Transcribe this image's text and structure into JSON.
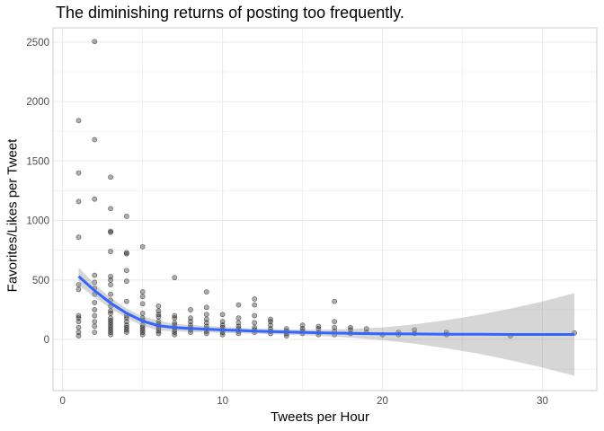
{
  "chart_data": {
    "type": "scatter",
    "title": "The diminishing returns of posting too frequently.",
    "xlabel": "Tweets per Hour",
    "ylabel": "Favorites/Likes per Tweet",
    "xlim": [
      -0.6,
      33.4
    ],
    "ylim": [
      -430,
      2620
    ],
    "x_ticks": [
      0,
      10,
      20,
      30
    ],
    "y_ticks": [
      0,
      500,
      1000,
      1500,
      2000,
      2500
    ],
    "grid": true,
    "colors": {
      "points": "#000000",
      "smooth": "#3366FF",
      "band": "#999999",
      "grid": "#EBEBEB",
      "panel_border": "#CCCCCC"
    },
    "points": [
      [
        1,
        1840
      ],
      [
        1,
        1400
      ],
      [
        1,
        1160
      ],
      [
        1,
        860
      ],
      [
        1,
        460
      ],
      [
        1,
        420
      ],
      [
        1,
        200
      ],
      [
        1,
        180
      ],
      [
        1,
        150
      ],
      [
        1,
        100
      ],
      [
        1,
        60
      ],
      [
        1,
        30
      ],
      [
        2,
        2505
      ],
      [
        2,
        1680
      ],
      [
        2,
        1180
      ],
      [
        2,
        540
      ],
      [
        2,
        480
      ],
      [
        2,
        430
      ],
      [
        2,
        380
      ],
      [
        2,
        310
      ],
      [
        2,
        250
      ],
      [
        2,
        200
      ],
      [
        2,
        150
      ],
      [
        2,
        110
      ],
      [
        2,
        60
      ],
      [
        3,
        1365
      ],
      [
        3,
        1100
      ],
      [
        3,
        910
      ],
      [
        3,
        900
      ],
      [
        3,
        740
      ],
      [
        3,
        530
      ],
      [
        3,
        500
      ],
      [
        3,
        460
      ],
      [
        3,
        380
      ],
      [
        3,
        330
      ],
      [
        3,
        280
      ],
      [
        3,
        240
      ],
      [
        3,
        220
      ],
      [
        3,
        180
      ],
      [
        3,
        160
      ],
      [
        3,
        140
      ],
      [
        3,
        120
      ],
      [
        3,
        100
      ],
      [
        3,
        80
      ],
      [
        3,
        60
      ],
      [
        3,
        40
      ],
      [
        4,
        1035
      ],
      [
        4,
        730
      ],
      [
        4,
        720
      ],
      [
        4,
        580
      ],
      [
        4,
        490
      ],
      [
        4,
        320
      ],
      [
        4,
        200
      ],
      [
        4,
        180
      ],
      [
        4,
        150
      ],
      [
        4,
        120
      ],
      [
        4,
        100
      ],
      [
        4,
        80
      ],
      [
        4,
        60
      ],
      [
        5,
        780
      ],
      [
        5,
        400
      ],
      [
        5,
        360
      ],
      [
        5,
        300
      ],
      [
        5,
        220
      ],
      [
        5,
        180
      ],
      [
        5,
        160
      ],
      [
        5,
        120
      ],
      [
        5,
        100
      ],
      [
        5,
        80
      ],
      [
        5,
        60
      ],
      [
        5,
        40
      ],
      [
        6,
        280
      ],
      [
        6,
        240
      ],
      [
        6,
        210
      ],
      [
        6,
        190
      ],
      [
        6,
        150
      ],
      [
        6,
        130
      ],
      [
        6,
        110
      ],
      [
        6,
        90
      ],
      [
        6,
        70
      ],
      [
        6,
        50
      ],
      [
        7,
        520
      ],
      [
        7,
        200
      ],
      [
        7,
        180
      ],
      [
        7,
        140
      ],
      [
        7,
        120
      ],
      [
        7,
        100
      ],
      [
        7,
        80
      ],
      [
        7,
        60
      ],
      [
        7,
        40
      ],
      [
        8,
        250
      ],
      [
        8,
        180
      ],
      [
        8,
        150
      ],
      [
        8,
        120
      ],
      [
        8,
        100
      ],
      [
        8,
        80
      ],
      [
        8,
        60
      ],
      [
        9,
        400
      ],
      [
        9,
        270
      ],
      [
        9,
        210
      ],
      [
        9,
        170
      ],
      [
        9,
        140
      ],
      [
        9,
        110
      ],
      [
        9,
        90
      ],
      [
        9,
        70
      ],
      [
        9,
        50
      ],
      [
        10,
        210
      ],
      [
        10,
        150
      ],
      [
        10,
        120
      ],
      [
        10,
        100
      ],
      [
        10,
        80
      ],
      [
        10,
        60
      ],
      [
        10,
        40
      ],
      [
        11,
        290
      ],
      [
        11,
        180
      ],
      [
        11,
        140
      ],
      [
        11,
        110
      ],
      [
        11,
        90
      ],
      [
        11,
        70
      ],
      [
        11,
        50
      ],
      [
        12,
        340
      ],
      [
        12,
        290
      ],
      [
        12,
        200
      ],
      [
        12,
        140
      ],
      [
        12,
        100
      ],
      [
        12,
        80
      ],
      [
        12,
        60
      ],
      [
        13,
        170
      ],
      [
        13,
        150
      ],
      [
        13,
        120
      ],
      [
        13,
        90
      ],
      [
        13,
        70
      ],
      [
        13,
        50
      ],
      [
        14,
        90
      ],
      [
        14,
        70
      ],
      [
        14,
        50
      ],
      [
        14,
        30
      ],
      [
        15,
        120
      ],
      [
        15,
        90
      ],
      [
        15,
        70
      ],
      [
        15,
        50
      ],
      [
        16,
        110
      ],
      [
        16,
        90
      ],
      [
        16,
        60
      ],
      [
        16,
        40
      ],
      [
        17,
        320
      ],
      [
        17,
        150
      ],
      [
        17,
        100
      ],
      [
        17,
        70
      ],
      [
        17,
        40
      ],
      [
        18,
        100
      ],
      [
        18,
        80
      ],
      [
        18,
        50
      ],
      [
        19,
        90
      ],
      [
        19,
        60
      ],
      [
        20,
        40
      ],
      [
        21,
        60
      ],
      [
        21,
        40
      ],
      [
        22,
        80
      ],
      [
        22,
        50
      ],
      [
        24,
        60
      ],
      [
        24,
        40
      ],
      [
        28,
        30
      ],
      [
        32,
        55
      ]
    ],
    "smooth": {
      "x": [
        1,
        2,
        3,
        4,
        5,
        6,
        7,
        8,
        10,
        12,
        14,
        16,
        18,
        20,
        22,
        24,
        26,
        28,
        30,
        32
      ],
      "y": [
        530,
        410,
        305,
        220,
        155,
        115,
        100,
        92,
        80,
        70,
        62,
        56,
        52,
        48,
        46,
        44,
        43,
        42,
        42,
        42
      ],
      "lower": [
        455,
        355,
        260,
        180,
        115,
        75,
        68,
        62,
        55,
        48,
        40,
        30,
        15,
        -5,
        -35,
        -75,
        -120,
        -175,
        -235,
        -305
      ],
      "upper": [
        605,
        465,
        350,
        260,
        195,
        155,
        132,
        122,
        105,
        92,
        84,
        82,
        89,
        101,
        127,
        163,
        206,
        259,
        319,
        389
      ]
    }
  }
}
